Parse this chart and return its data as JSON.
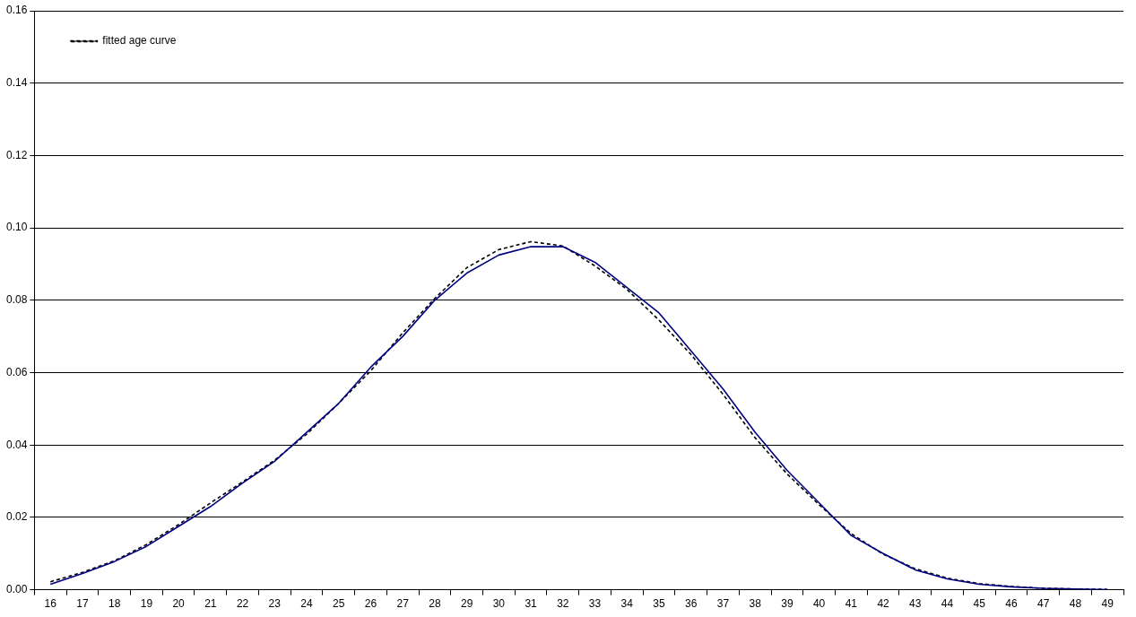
{
  "chart_data": {
    "type": "line",
    "categories": [
      "16",
      "17",
      "18",
      "19",
      "20",
      "21",
      "22",
      "23",
      "24",
      "25",
      "26",
      "27",
      "28",
      "29",
      "30",
      "31",
      "32",
      "33",
      "34",
      "35",
      "36",
      "37",
      "38",
      "39",
      "40",
      "41",
      "42",
      "43",
      "44",
      "45",
      "46",
      "47",
      "48",
      "49"
    ],
    "series": [
      {
        "color": "#000080",
        "line_style": "solid",
        "values": [
          0.0015,
          0.0045,
          0.0078,
          0.012,
          0.0175,
          0.023,
          0.0295,
          0.0355,
          0.0435,
          0.0515,
          0.0615,
          0.07,
          0.08,
          0.0875,
          0.0925,
          0.0948,
          0.0948,
          0.0905,
          0.0835,
          0.0765,
          0.066,
          0.0555,
          0.0435,
          0.033,
          0.024,
          0.015,
          0.01,
          0.0055,
          0.003,
          0.0015,
          0.0008,
          0.0004,
          0.0002,
          0
        ]
      },
      {
        "name": "fitted age curve",
        "color": "#000000",
        "line_style": "dashed",
        "values": [
          0.0022,
          0.0048,
          0.008,
          0.0125,
          0.018,
          0.024,
          0.0298,
          0.0358,
          0.043,
          0.0515,
          0.0605,
          0.071,
          0.0805,
          0.089,
          0.094,
          0.0962,
          0.095,
          0.0895,
          0.083,
          0.0745,
          0.065,
          0.054,
          0.042,
          0.032,
          0.0235,
          0.0155,
          0.0098,
          0.0058,
          0.0032,
          0.0017,
          0.0009,
          0.0004,
          0.0002,
          0.0001
        ]
      }
    ],
    "ylim": [
      0,
      0.16
    ],
    "yticks": [
      {
        "value": 0,
        "label": "0.00"
      },
      {
        "value": 0.02,
        "label": "0.02"
      },
      {
        "value": 0.04,
        "label": "0.04"
      },
      {
        "value": 0.06,
        "label": "0.06"
      },
      {
        "value": 0.08,
        "label": "0.08"
      },
      {
        "value": 0.1,
        "label": "0.10"
      },
      {
        "value": 0.12,
        "label": "0.12"
      },
      {
        "value": 0.14,
        "label": "0.14"
      },
      {
        "value": 0.16,
        "label": "0.16"
      }
    ],
    "grid": "y",
    "legend": "top left",
    "marker": "none"
  }
}
